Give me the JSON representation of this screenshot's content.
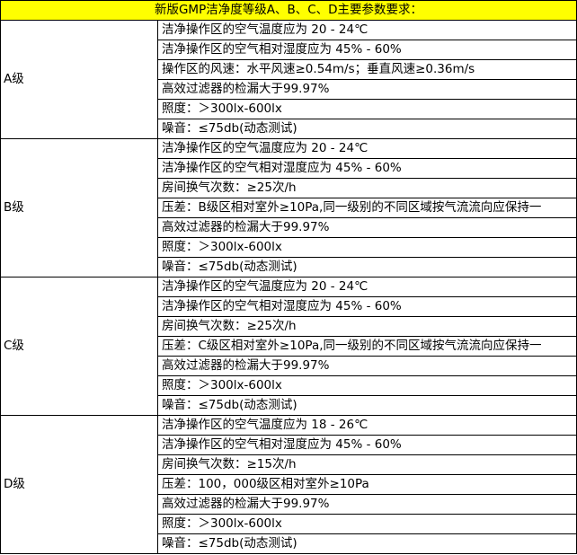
{
  "title": "新版GMP洁净度等级A、B、C、D主要参数要求：",
  "header_color": "#ffff00",
  "grades": [
    {
      "label": "A级",
      "items": [
        "洁净操作区的空气温度应为 20 - 24℃",
        "洁净操作区的空气相对湿度应为 45% - 60%",
        "操作区的风速：水平风速≥0.54m/s；垂直风速≥0.36m/s",
        "高效过滤器的检漏大于99.97%",
        "照度：＞300lx-600lx",
        "噪音：≤75db(动态测试)"
      ]
    },
    {
      "label": "B级",
      "items": [
        "洁净操作区的空气温度应为 20 - 24℃",
        "洁净操作区的空气相对湿度应为 45% - 60%",
        "房间换气次数：≥25次/h",
        "压差：B级区相对室外≥10Pa,同一级别的不同区域按气流流向应保持一",
        "高效过滤器的检漏大于99.97%",
        "照度：＞300lx-600lx",
        "噪音：≤75db(动态测试)"
      ]
    },
    {
      "label": "C级",
      "items": [
        "洁净操作区的空气温度应为 20 - 24℃",
        "洁净操作区的空气相对湿度应为 45% - 60%",
        "房间换气次数：≥25次/h",
        "压差：C级区相对室外≥10Pa,同一级别的不同区域按气流流向应保持一",
        "高效过滤器的检漏大于99.97%",
        "照度：＞300lx-600lx",
        "噪音：≤75db(动态测试)"
      ]
    },
    {
      "label": "D级",
      "items": [
        "洁净操作区的空气温度应为 18 - 26℃",
        "洁净操作区的空气相对湿度应为 45% - 60%",
        "房间换气次数：≥15次/h",
        "压差：100，000级区相对室外≥10Pa",
        "高效过滤器的检漏大于99.97%",
        "照度：＞300lx-600lx",
        "噪音：≤75db(动态测试)"
      ]
    }
  ]
}
